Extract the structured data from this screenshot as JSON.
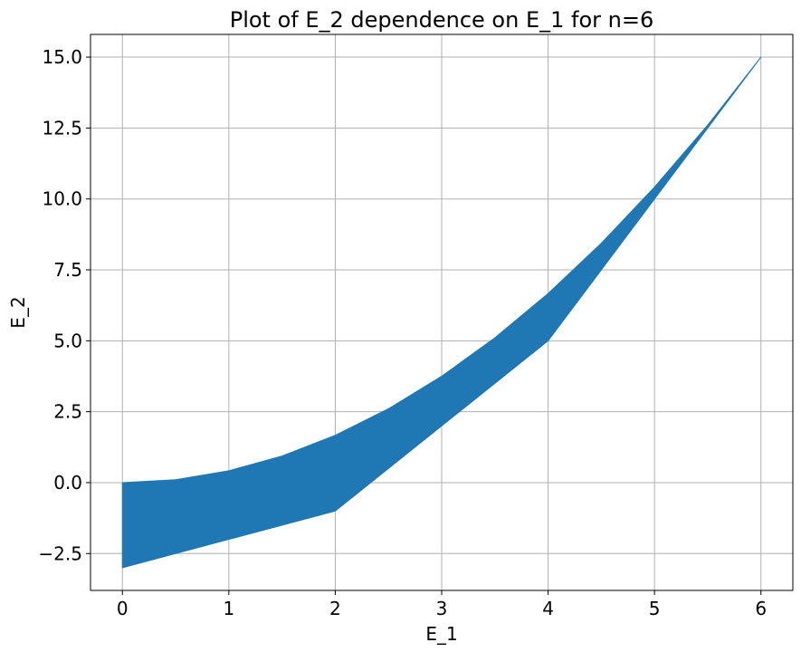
{
  "chart_data": {
    "type": "area",
    "title": "Plot of E_2 dependence on E_1 for n=6",
    "xlabel": "E_1",
    "ylabel": "E_2",
    "xlim": [
      -0.3,
      6.3
    ],
    "ylim": [
      -3.8,
      15.8
    ],
    "grid": true,
    "x_ticks": [
      0,
      1,
      2,
      3,
      4,
      5,
      6
    ],
    "x_tick_labels": [
      "0",
      "1",
      "2",
      "3",
      "4",
      "5",
      "6"
    ],
    "y_ticks": [
      -2.5,
      0.0,
      2.5,
      5.0,
      7.5,
      10.0,
      12.5,
      15.0
    ],
    "y_tick_labels": [
      "−2.5",
      "0.0",
      "2.5",
      "5.0",
      "7.5",
      "10.0",
      "12.5",
      "15.0"
    ],
    "fill_color": "#1f77b4",
    "upper_boundary": {
      "x": [
        0,
        0.5,
        1,
        1.5,
        2,
        2.5,
        3,
        3.5,
        4,
        4.5,
        5,
        5.5,
        6
      ],
      "y": [
        0.0,
        0.104,
        0.417,
        0.938,
        1.667,
        2.604,
        3.75,
        5.104,
        6.667,
        8.438,
        10.417,
        12.604,
        15.0
      ]
    },
    "lower_boundary": {
      "x": [
        0,
        2,
        4,
        6
      ],
      "y": [
        -3.0,
        -1.0,
        5.0,
        15.0
      ]
    }
  }
}
